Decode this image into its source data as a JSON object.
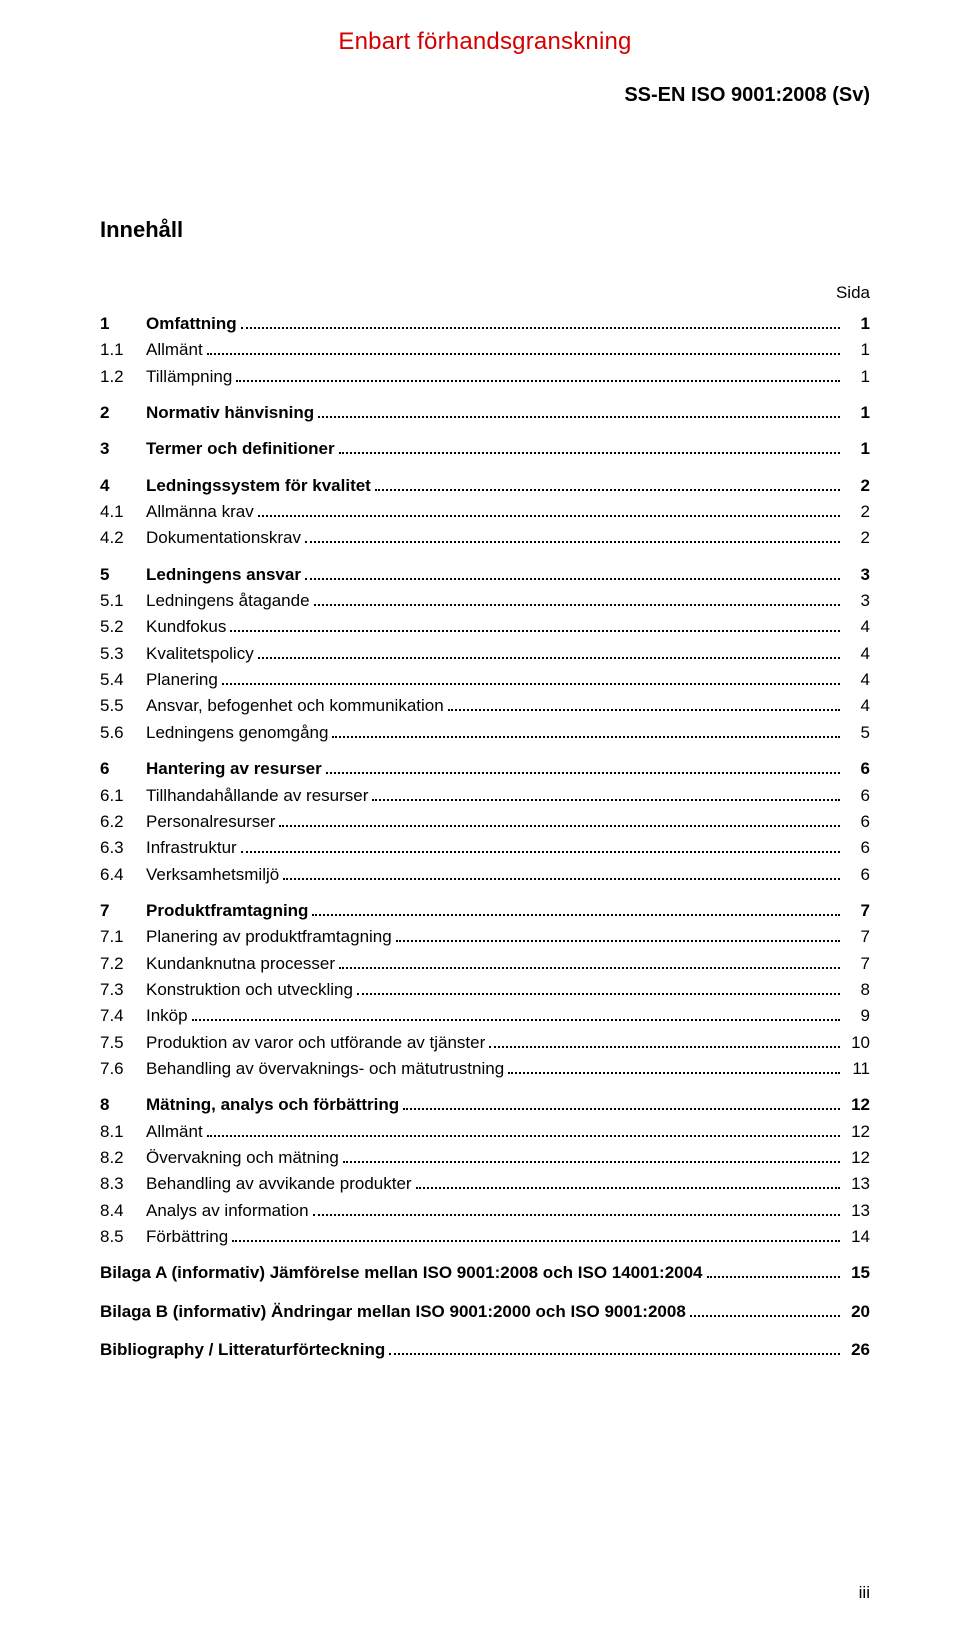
{
  "watermark": "Enbart förhandsgranskning",
  "doc_id": "SS-EN ISO 9001:2008 (Sv)",
  "heading": "Innehåll",
  "page_label": "Sida",
  "footer_page": "iii",
  "toc": [
    {
      "entries": [
        {
          "num": "1",
          "title": "Omfattning",
          "page": "1",
          "bold": true
        },
        {
          "num": "1.1",
          "title": "Allmänt",
          "page": "1",
          "bold": false
        },
        {
          "num": "1.2",
          "title": "Tillämpning",
          "page": "1",
          "bold": false
        }
      ]
    },
    {
      "entries": [
        {
          "num": "2",
          "title": "Normativ hänvisning",
          "page": "1",
          "bold": true
        }
      ]
    },
    {
      "entries": [
        {
          "num": "3",
          "title": "Termer och definitioner",
          "page": "1",
          "bold": true
        }
      ]
    },
    {
      "entries": [
        {
          "num": "4",
          "title": "Ledningssystem för kvalitet",
          "page": "2",
          "bold": true
        },
        {
          "num": "4.1",
          "title": "Allmänna krav",
          "page": "2",
          "bold": false
        },
        {
          "num": "4.2",
          "title": "Dokumentationskrav",
          "page": "2",
          "bold": false
        }
      ]
    },
    {
      "entries": [
        {
          "num": "5",
          "title": "Ledningens ansvar",
          "page": "3",
          "bold": true
        },
        {
          "num": "5.1",
          "title": "Ledningens åtagande",
          "page": "3",
          "bold": false
        },
        {
          "num": "5.2",
          "title": "Kundfokus",
          "page": "4",
          "bold": false
        },
        {
          "num": "5.3",
          "title": "Kvalitetspolicy",
          "page": "4",
          "bold": false
        },
        {
          "num": "5.4",
          "title": "Planering",
          "page": "4",
          "bold": false
        },
        {
          "num": "5.5",
          "title": "Ansvar, befogenhet och kommunikation",
          "page": "4",
          "bold": false
        },
        {
          "num": "5.6",
          "title": "Ledningens genomgång",
          "page": "5",
          "bold": false
        }
      ]
    },
    {
      "entries": [
        {
          "num": "6",
          "title": "Hantering av resurser",
          "page": "6",
          "bold": true
        },
        {
          "num": "6.1",
          "title": "Tillhandahållande av resurser",
          "page": "6",
          "bold": false
        },
        {
          "num": "6.2",
          "title": "Personalresurser",
          "page": "6",
          "bold": false
        },
        {
          "num": "6.3",
          "title": "Infrastruktur",
          "page": "6",
          "bold": false
        },
        {
          "num": "6.4",
          "title": "Verksamhetsmiljö",
          "page": "6",
          "bold": false
        }
      ]
    },
    {
      "entries": [
        {
          "num": "7",
          "title": "Produktframtagning",
          "page": "7",
          "bold": true
        },
        {
          "num": "7.1",
          "title": "Planering av produktframtagning",
          "page": "7",
          "bold": false
        },
        {
          "num": "7.2",
          "title": "Kundanknutna processer",
          "page": "7",
          "bold": false
        },
        {
          "num": "7.3",
          "title": "Konstruktion och utveckling",
          "page": "8",
          "bold": false
        },
        {
          "num": "7.4",
          "title": "Inköp",
          "page": "9",
          "bold": false
        },
        {
          "num": "7.5",
          "title": "Produktion av varor och utförande av tjänster",
          "page": "10",
          "bold": false
        },
        {
          "num": "7.6",
          "title": "Behandling av övervaknings- och mätutrustning",
          "page": "11",
          "bold": false
        }
      ]
    },
    {
      "entries": [
        {
          "num": "8",
          "title": "Mätning, analys och förbättring",
          "page": "12",
          "bold": true
        },
        {
          "num": "8.1",
          "title": "Allmänt",
          "page": "12",
          "bold": false
        },
        {
          "num": "8.2",
          "title": "Övervakning och mätning",
          "page": "12",
          "bold": false
        },
        {
          "num": "8.3",
          "title": "Behandling av avvikande produkter",
          "page": "13",
          "bold": false
        },
        {
          "num": "8.4",
          "title": "Analys av information",
          "page": "13",
          "bold": false
        },
        {
          "num": "8.5",
          "title": "Förbättring",
          "page": "14",
          "bold": false
        }
      ]
    }
  ],
  "appendices": [
    {
      "title": "Bilaga A (informativ) Jämförelse mellan ISO 9001:2008 och ISO 14001:2004",
      "page": "15"
    },
    {
      "title": "Bilaga B (informativ) Ändringar mellan ISO 9001:2000 och ISO 9001:2008",
      "page": "20"
    },
    {
      "title": "Bibliography / Litteraturförteckning",
      "page": "26"
    }
  ]
}
